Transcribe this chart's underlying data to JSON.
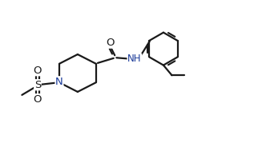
{
  "bg_color": "#ffffff",
  "line_color": "#1a1a1a",
  "bond_lw": 1.6,
  "label_fontsize": 9.5,
  "small_fontsize": 8.5,
  "fig_width": 3.17,
  "fig_height": 1.89,
  "xlim": [
    0.0,
    10.5
  ],
  "ylim": [
    0.5,
    6.5
  ]
}
